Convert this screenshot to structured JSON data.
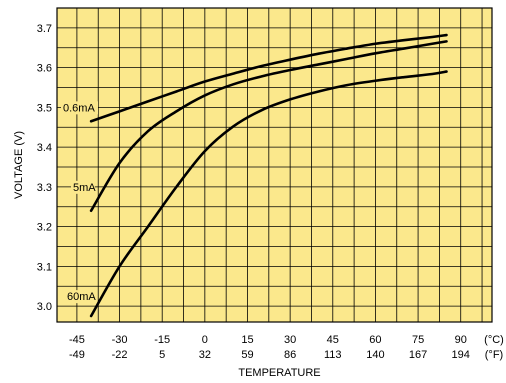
{
  "chart_data": {
    "type": "line",
    "title": "",
    "xlabel": "TEMPERATURE",
    "ylabel": "VOLTAGE (V)",
    "xlim": [
      -52,
      101
    ],
    "ylim": [
      2.96,
      3.75
    ],
    "grid": true,
    "x_ticks_c": [
      "-45",
      "-30",
      "-15",
      "0",
      "15",
      "30",
      "45",
      "60",
      "75",
      "90"
    ],
    "x_ticks_f": [
      "-49",
      "-22",
      "5",
      "32",
      "59",
      "86",
      "113",
      "140",
      "167",
      "194"
    ],
    "x_unit_c": "(°C)",
    "x_unit_f": "(°F)",
    "y_ticks": [
      "3.0",
      "3.1",
      "3.2",
      "3.3",
      "3.4",
      "3.5",
      "3.6",
      "3.7"
    ],
    "series": [
      {
        "name": "0.6mA",
        "x": [
          -40,
          -30,
          -20,
          -10,
          0,
          10,
          20,
          30,
          40,
          50,
          60,
          70,
          80,
          85
        ],
        "y": [
          3.465,
          3.49,
          3.515,
          3.54,
          3.565,
          3.585,
          3.604,
          3.62,
          3.635,
          3.648,
          3.66,
          3.669,
          3.677,
          3.682
        ]
      },
      {
        "name": "5mA",
        "x": [
          -40,
          -30,
          -20,
          -10,
          0,
          10,
          20,
          30,
          40,
          50,
          60,
          70,
          80,
          85
        ],
        "y": [
          3.24,
          3.36,
          3.44,
          3.49,
          3.53,
          3.558,
          3.578,
          3.594,
          3.608,
          3.622,
          3.636,
          3.648,
          3.66,
          3.666
        ]
      },
      {
        "name": "60mA",
        "x": [
          -40,
          -30,
          -20,
          -10,
          0,
          10,
          20,
          30,
          40,
          50,
          60,
          70,
          80,
          85
        ],
        "y": [
          2.975,
          3.1,
          3.2,
          3.3,
          3.39,
          3.452,
          3.493,
          3.52,
          3.54,
          3.556,
          3.567,
          3.576,
          3.584,
          3.59
        ]
      }
    ],
    "colors": {
      "plot_background": "#fbe88c",
      "grid": "#000000",
      "line": "#000000"
    }
  }
}
